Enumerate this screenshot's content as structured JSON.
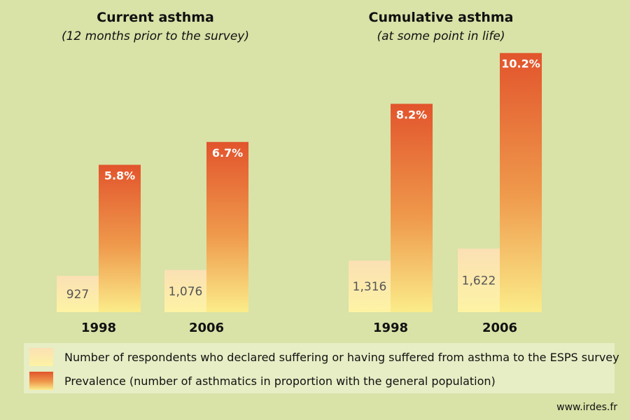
{
  "colors": {
    "background": "#d9e2a7",
    "legend_background": "#e7edc4",
    "respondents_top": "#fbe0b4",
    "respondents_bottom": "#fdf3a4",
    "prevalence_top": "#e2542c",
    "prevalence_mid": "#ef9a4c",
    "prevalence_bottom": "#fbec8a"
  },
  "chart_data": [
    {
      "type": "bar",
      "title": "Current asthma",
      "subtitle": "(12 months prior to the survey)",
      "categories": [
        "1998",
        "2006"
      ],
      "series": [
        {
          "name": "Number of respondents who declared suffering or having suffered from asthma to the ESPS survey",
          "values": [
            927,
            1076
          ],
          "labels": [
            "927",
            "1,076"
          ]
        },
        {
          "name": "Prevalence (number of asthmatics in proportion with the general population)",
          "values": [
            5.8,
            6.7
          ],
          "labels": [
            "5.8%",
            "6.7%"
          ]
        }
      ]
    },
    {
      "type": "bar",
      "title": "Cumulative asthma",
      "subtitle": "(at some point in life)",
      "categories": [
        "1998",
        "2006"
      ],
      "series": [
        {
          "name": "Number of respondents who declared suffering or having suffered from asthma to the ESPS survey",
          "values": [
            1316,
            1622
          ],
          "labels": [
            "1,316",
            "1,622"
          ]
        },
        {
          "name": "Prevalence (number of asthmatics in proportion with the general population)",
          "values": [
            8.2,
            10.2
          ],
          "labels": [
            "8.2%",
            "10.2%"
          ]
        }
      ]
    }
  ],
  "legend": {
    "items": [
      {
        "label": "Number of respondents who declared suffering or having suffered from asthma to the ESPS survey"
      },
      {
        "label": "Prevalence (number of asthmatics in proportion with the general population)"
      }
    ]
  },
  "source": "www.irdes.fr"
}
